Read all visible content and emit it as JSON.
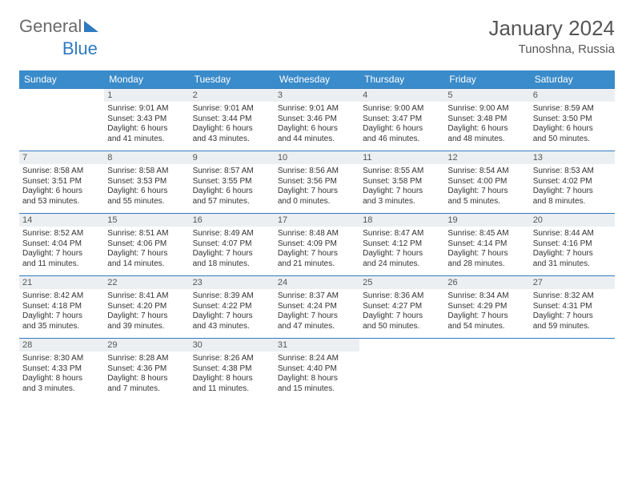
{
  "logo": {
    "part1": "General",
    "part2": "Blue"
  },
  "title": "January 2024",
  "location": "Tunoshna, Russia",
  "colors": {
    "header_bg": "#3a8bca",
    "header_text": "#ffffff",
    "daynum_bg": "#eceff1",
    "daynum_border": "#2f7ac0",
    "body_text": "#333333",
    "title_text": "#555555"
  },
  "weekdays": [
    "Sunday",
    "Monday",
    "Tuesday",
    "Wednesday",
    "Thursday",
    "Friday",
    "Saturday"
  ],
  "weeks": [
    [
      null,
      {
        "n": "1",
        "sr": "Sunrise: 9:01 AM",
        "ss": "Sunset: 3:43 PM",
        "d1": "Daylight: 6 hours",
        "d2": "and 41 minutes."
      },
      {
        "n": "2",
        "sr": "Sunrise: 9:01 AM",
        "ss": "Sunset: 3:44 PM",
        "d1": "Daylight: 6 hours",
        "d2": "and 43 minutes."
      },
      {
        "n": "3",
        "sr": "Sunrise: 9:01 AM",
        "ss": "Sunset: 3:46 PM",
        "d1": "Daylight: 6 hours",
        "d2": "and 44 minutes."
      },
      {
        "n": "4",
        "sr": "Sunrise: 9:00 AM",
        "ss": "Sunset: 3:47 PM",
        "d1": "Daylight: 6 hours",
        "d2": "and 46 minutes."
      },
      {
        "n": "5",
        "sr": "Sunrise: 9:00 AM",
        "ss": "Sunset: 3:48 PM",
        "d1": "Daylight: 6 hours",
        "d2": "and 48 minutes."
      },
      {
        "n": "6",
        "sr": "Sunrise: 8:59 AM",
        "ss": "Sunset: 3:50 PM",
        "d1": "Daylight: 6 hours",
        "d2": "and 50 minutes."
      }
    ],
    [
      {
        "n": "7",
        "sr": "Sunrise: 8:58 AM",
        "ss": "Sunset: 3:51 PM",
        "d1": "Daylight: 6 hours",
        "d2": "and 53 minutes."
      },
      {
        "n": "8",
        "sr": "Sunrise: 8:58 AM",
        "ss": "Sunset: 3:53 PM",
        "d1": "Daylight: 6 hours",
        "d2": "and 55 minutes."
      },
      {
        "n": "9",
        "sr": "Sunrise: 8:57 AM",
        "ss": "Sunset: 3:55 PM",
        "d1": "Daylight: 6 hours",
        "d2": "and 57 minutes."
      },
      {
        "n": "10",
        "sr": "Sunrise: 8:56 AM",
        "ss": "Sunset: 3:56 PM",
        "d1": "Daylight: 7 hours",
        "d2": "and 0 minutes."
      },
      {
        "n": "11",
        "sr": "Sunrise: 8:55 AM",
        "ss": "Sunset: 3:58 PM",
        "d1": "Daylight: 7 hours",
        "d2": "and 3 minutes."
      },
      {
        "n": "12",
        "sr": "Sunrise: 8:54 AM",
        "ss": "Sunset: 4:00 PM",
        "d1": "Daylight: 7 hours",
        "d2": "and 5 minutes."
      },
      {
        "n": "13",
        "sr": "Sunrise: 8:53 AM",
        "ss": "Sunset: 4:02 PM",
        "d1": "Daylight: 7 hours",
        "d2": "and 8 minutes."
      }
    ],
    [
      {
        "n": "14",
        "sr": "Sunrise: 8:52 AM",
        "ss": "Sunset: 4:04 PM",
        "d1": "Daylight: 7 hours",
        "d2": "and 11 minutes."
      },
      {
        "n": "15",
        "sr": "Sunrise: 8:51 AM",
        "ss": "Sunset: 4:06 PM",
        "d1": "Daylight: 7 hours",
        "d2": "and 14 minutes."
      },
      {
        "n": "16",
        "sr": "Sunrise: 8:49 AM",
        "ss": "Sunset: 4:07 PM",
        "d1": "Daylight: 7 hours",
        "d2": "and 18 minutes."
      },
      {
        "n": "17",
        "sr": "Sunrise: 8:48 AM",
        "ss": "Sunset: 4:09 PM",
        "d1": "Daylight: 7 hours",
        "d2": "and 21 minutes."
      },
      {
        "n": "18",
        "sr": "Sunrise: 8:47 AM",
        "ss": "Sunset: 4:12 PM",
        "d1": "Daylight: 7 hours",
        "d2": "and 24 minutes."
      },
      {
        "n": "19",
        "sr": "Sunrise: 8:45 AM",
        "ss": "Sunset: 4:14 PM",
        "d1": "Daylight: 7 hours",
        "d2": "and 28 minutes."
      },
      {
        "n": "20",
        "sr": "Sunrise: 8:44 AM",
        "ss": "Sunset: 4:16 PM",
        "d1": "Daylight: 7 hours",
        "d2": "and 31 minutes."
      }
    ],
    [
      {
        "n": "21",
        "sr": "Sunrise: 8:42 AM",
        "ss": "Sunset: 4:18 PM",
        "d1": "Daylight: 7 hours",
        "d2": "and 35 minutes."
      },
      {
        "n": "22",
        "sr": "Sunrise: 8:41 AM",
        "ss": "Sunset: 4:20 PM",
        "d1": "Daylight: 7 hours",
        "d2": "and 39 minutes."
      },
      {
        "n": "23",
        "sr": "Sunrise: 8:39 AM",
        "ss": "Sunset: 4:22 PM",
        "d1": "Daylight: 7 hours",
        "d2": "and 43 minutes."
      },
      {
        "n": "24",
        "sr": "Sunrise: 8:37 AM",
        "ss": "Sunset: 4:24 PM",
        "d1": "Daylight: 7 hours",
        "d2": "and 47 minutes."
      },
      {
        "n": "25",
        "sr": "Sunrise: 8:36 AM",
        "ss": "Sunset: 4:27 PM",
        "d1": "Daylight: 7 hours",
        "d2": "and 50 minutes."
      },
      {
        "n": "26",
        "sr": "Sunrise: 8:34 AM",
        "ss": "Sunset: 4:29 PM",
        "d1": "Daylight: 7 hours",
        "d2": "and 54 minutes."
      },
      {
        "n": "27",
        "sr": "Sunrise: 8:32 AM",
        "ss": "Sunset: 4:31 PM",
        "d1": "Daylight: 7 hours",
        "d2": "and 59 minutes."
      }
    ],
    [
      {
        "n": "28",
        "sr": "Sunrise: 8:30 AM",
        "ss": "Sunset: 4:33 PM",
        "d1": "Daylight: 8 hours",
        "d2": "and 3 minutes."
      },
      {
        "n": "29",
        "sr": "Sunrise: 8:28 AM",
        "ss": "Sunset: 4:36 PM",
        "d1": "Daylight: 8 hours",
        "d2": "and 7 minutes."
      },
      {
        "n": "30",
        "sr": "Sunrise: 8:26 AM",
        "ss": "Sunset: 4:38 PM",
        "d1": "Daylight: 8 hours",
        "d2": "and 11 minutes."
      },
      {
        "n": "31",
        "sr": "Sunrise: 8:24 AM",
        "ss": "Sunset: 4:40 PM",
        "d1": "Daylight: 8 hours",
        "d2": "and 15 minutes."
      },
      null,
      null,
      null
    ]
  ]
}
